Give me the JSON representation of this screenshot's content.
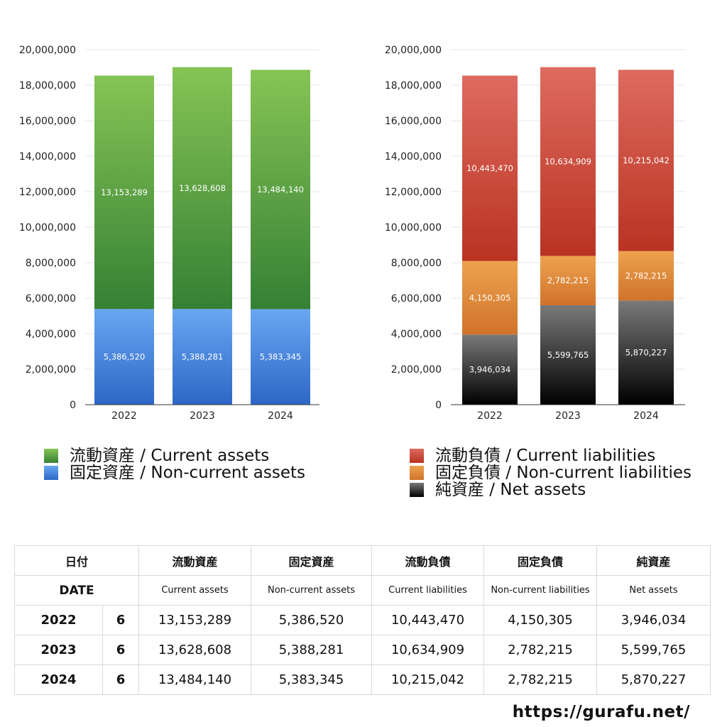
{
  "chart_data": [
    {
      "type": "bar",
      "stacked": true,
      "categories": [
        "2022",
        "2023",
        "2024"
      ],
      "ylim": [
        0,
        20000000
      ],
      "yticks": [
        "0",
        "2,000,000",
        "4,000,000",
        "6,000,000",
        "8,000,000",
        "10,000,000",
        "12,000,000",
        "14,000,000",
        "16,000,000",
        "18,000,000",
        "20,000,000"
      ],
      "grid": true,
      "series": [
        {
          "name": "固定資産 / Non-current assets",
          "values": [
            5386520,
            5388281,
            5383345
          ],
          "labels": [
            "5,386,520",
            "5,388,281",
            "5,383,345"
          ],
          "color_top": "#69a7f2",
          "color_bottom": "#2d67c6"
        },
        {
          "name": "流動資産 / Current assets",
          "values": [
            13153289,
            13628608,
            13484140
          ],
          "labels": [
            "13,153,289",
            "13,628,608",
            "13,484,140"
          ],
          "color_top": "#86c455",
          "color_bottom": "#358034"
        }
      ]
    },
    {
      "type": "bar",
      "stacked": true,
      "categories": [
        "2022",
        "2023",
        "2024"
      ],
      "ylim": [
        0,
        20000000
      ],
      "yticks": [
        "0",
        "2,000,000",
        "4,000,000",
        "6,000,000",
        "8,000,000",
        "10,000,000",
        "12,000,000",
        "14,000,000",
        "16,000,000",
        "18,000,000",
        "20,000,000"
      ],
      "grid": true,
      "series": [
        {
          "name": "純資産 / Net assets",
          "values": [
            3946034,
            5599765,
            5870227
          ],
          "labels": [
            "3,946,034",
            "5,599,765",
            "5,870,227"
          ],
          "color_top": "#7a7a7a",
          "color_bottom": "#000000"
        },
        {
          "name": "固定負債 / Non-current liabilities",
          "values": [
            4150305,
            2782215,
            2782215
          ],
          "labels": [
            "4,150,305",
            "2,782,215",
            "2,782,215"
          ],
          "color_top": "#eda24f",
          "color_bottom": "#d0732a"
        },
        {
          "name": "流動負債 / Current liabilities",
          "values": [
            10443470,
            10634909,
            10215042
          ],
          "labels": [
            "10,443,470",
            "10,634,909",
            "10,215,042"
          ],
          "color_top": "#de6b5f",
          "color_bottom": "#b93322"
        }
      ]
    }
  ],
  "legend_left": [
    {
      "label": "流動資産 / Current assets",
      "color_top": "#86c455",
      "color_bottom": "#358034"
    },
    {
      "label": "固定資産 / Non-current assets",
      "color_top": "#69a7f2",
      "color_bottom": "#2d67c6"
    }
  ],
  "legend_right": [
    {
      "label": "流動負債 / Current liabilities",
      "color_top": "#de6b5f",
      "color_bottom": "#b93322"
    },
    {
      "label": "固定負債 / Non-current liabilities",
      "color_top": "#eda24f",
      "color_bottom": "#d0732a"
    },
    {
      "label": "純資産 / Net assets",
      "color_top": "#7a7a7a",
      "color_bottom": "#000000"
    }
  ],
  "table": {
    "date_jp": "日付",
    "date_en": "DATE",
    "headers_jp": [
      "流動資産",
      "固定資産",
      "流動負債",
      "固定負債",
      "純資産"
    ],
    "headers_en": [
      "Current assets",
      "Non-current assets",
      "Current liabilities",
      "Non-current liabilities",
      "Net assets"
    ],
    "rows": [
      {
        "year": "2022",
        "month": "6",
        "values": [
          "13,153,289",
          "5,386,520",
          "10,443,470",
          "4,150,305",
          "3,946,034"
        ]
      },
      {
        "year": "2023",
        "month": "6",
        "values": [
          "13,628,608",
          "5,388,281",
          "10,634,909",
          "2,782,215",
          "5,599,765"
        ]
      },
      {
        "year": "2024",
        "month": "6",
        "values": [
          "13,484,140",
          "5,383,345",
          "10,215,042",
          "2,782,215",
          "5,870,227"
        ]
      }
    ]
  },
  "source": "https://gurafu.net/"
}
